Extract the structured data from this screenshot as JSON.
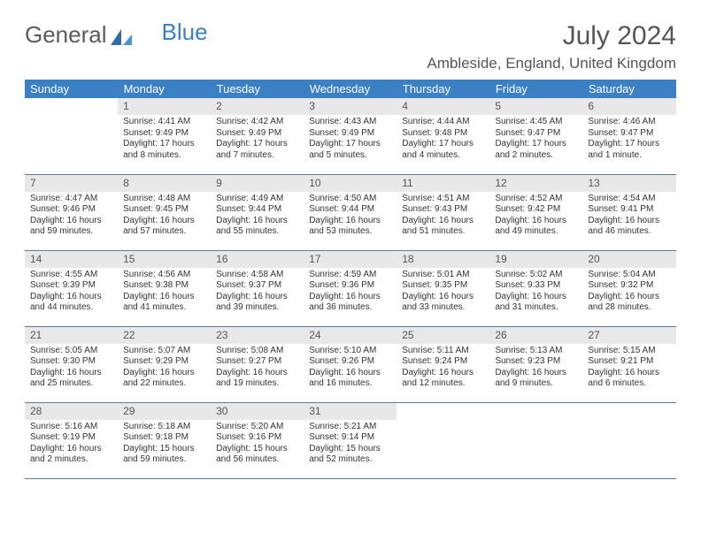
{
  "logo": {
    "part1": "General",
    "part2": "Blue"
  },
  "title": "July 2024",
  "location": "Ambleside, England, United Kingdom",
  "colors": {
    "header_bg": "#3b7fc4",
    "header_text": "#ffffff",
    "daynum_bg": "#e8e8e8",
    "border": "#5a7a9a",
    "text": "#333333",
    "title_text": "#555555"
  },
  "weekdays": [
    "Sunday",
    "Monday",
    "Tuesday",
    "Wednesday",
    "Thursday",
    "Friday",
    "Saturday"
  ],
  "weeks": [
    [
      null,
      {
        "n": "1",
        "sr": "Sunrise: 4:41 AM",
        "ss": "Sunset: 9:49 PM",
        "dl1": "Daylight: 17 hours",
        "dl2": "and 8 minutes."
      },
      {
        "n": "2",
        "sr": "Sunrise: 4:42 AM",
        "ss": "Sunset: 9:49 PM",
        "dl1": "Daylight: 17 hours",
        "dl2": "and 7 minutes."
      },
      {
        "n": "3",
        "sr": "Sunrise: 4:43 AM",
        "ss": "Sunset: 9:49 PM",
        "dl1": "Daylight: 17 hours",
        "dl2": "and 5 minutes."
      },
      {
        "n": "4",
        "sr": "Sunrise: 4:44 AM",
        "ss": "Sunset: 9:48 PM",
        "dl1": "Daylight: 17 hours",
        "dl2": "and 4 minutes."
      },
      {
        "n": "5",
        "sr": "Sunrise: 4:45 AM",
        "ss": "Sunset: 9:47 PM",
        "dl1": "Daylight: 17 hours",
        "dl2": "and 2 minutes."
      },
      {
        "n": "6",
        "sr": "Sunrise: 4:46 AM",
        "ss": "Sunset: 9:47 PM",
        "dl1": "Daylight: 17 hours",
        "dl2": "and 1 minute."
      }
    ],
    [
      {
        "n": "7",
        "sr": "Sunrise: 4:47 AM",
        "ss": "Sunset: 9:46 PM",
        "dl1": "Daylight: 16 hours",
        "dl2": "and 59 minutes."
      },
      {
        "n": "8",
        "sr": "Sunrise: 4:48 AM",
        "ss": "Sunset: 9:45 PM",
        "dl1": "Daylight: 16 hours",
        "dl2": "and 57 minutes."
      },
      {
        "n": "9",
        "sr": "Sunrise: 4:49 AM",
        "ss": "Sunset: 9:44 PM",
        "dl1": "Daylight: 16 hours",
        "dl2": "and 55 minutes."
      },
      {
        "n": "10",
        "sr": "Sunrise: 4:50 AM",
        "ss": "Sunset: 9:44 PM",
        "dl1": "Daylight: 16 hours",
        "dl2": "and 53 minutes."
      },
      {
        "n": "11",
        "sr": "Sunrise: 4:51 AM",
        "ss": "Sunset: 9:43 PM",
        "dl1": "Daylight: 16 hours",
        "dl2": "and 51 minutes."
      },
      {
        "n": "12",
        "sr": "Sunrise: 4:52 AM",
        "ss": "Sunset: 9:42 PM",
        "dl1": "Daylight: 16 hours",
        "dl2": "and 49 minutes."
      },
      {
        "n": "13",
        "sr": "Sunrise: 4:54 AM",
        "ss": "Sunset: 9:41 PM",
        "dl1": "Daylight: 16 hours",
        "dl2": "and 46 minutes."
      }
    ],
    [
      {
        "n": "14",
        "sr": "Sunrise: 4:55 AM",
        "ss": "Sunset: 9:39 PM",
        "dl1": "Daylight: 16 hours",
        "dl2": "and 44 minutes."
      },
      {
        "n": "15",
        "sr": "Sunrise: 4:56 AM",
        "ss": "Sunset: 9:38 PM",
        "dl1": "Daylight: 16 hours",
        "dl2": "and 41 minutes."
      },
      {
        "n": "16",
        "sr": "Sunrise: 4:58 AM",
        "ss": "Sunset: 9:37 PM",
        "dl1": "Daylight: 16 hours",
        "dl2": "and 39 minutes."
      },
      {
        "n": "17",
        "sr": "Sunrise: 4:59 AM",
        "ss": "Sunset: 9:36 PM",
        "dl1": "Daylight: 16 hours",
        "dl2": "and 36 minutes."
      },
      {
        "n": "18",
        "sr": "Sunrise: 5:01 AM",
        "ss": "Sunset: 9:35 PM",
        "dl1": "Daylight: 16 hours",
        "dl2": "and 33 minutes."
      },
      {
        "n": "19",
        "sr": "Sunrise: 5:02 AM",
        "ss": "Sunset: 9:33 PM",
        "dl1": "Daylight: 16 hours",
        "dl2": "and 31 minutes."
      },
      {
        "n": "20",
        "sr": "Sunrise: 5:04 AM",
        "ss": "Sunset: 9:32 PM",
        "dl1": "Daylight: 16 hours",
        "dl2": "and 28 minutes."
      }
    ],
    [
      {
        "n": "21",
        "sr": "Sunrise: 5:05 AM",
        "ss": "Sunset: 9:30 PM",
        "dl1": "Daylight: 16 hours",
        "dl2": "and 25 minutes."
      },
      {
        "n": "22",
        "sr": "Sunrise: 5:07 AM",
        "ss": "Sunset: 9:29 PM",
        "dl1": "Daylight: 16 hours",
        "dl2": "and 22 minutes."
      },
      {
        "n": "23",
        "sr": "Sunrise: 5:08 AM",
        "ss": "Sunset: 9:27 PM",
        "dl1": "Daylight: 16 hours",
        "dl2": "and 19 minutes."
      },
      {
        "n": "24",
        "sr": "Sunrise: 5:10 AM",
        "ss": "Sunset: 9:26 PM",
        "dl1": "Daylight: 16 hours",
        "dl2": "and 16 minutes."
      },
      {
        "n": "25",
        "sr": "Sunrise: 5:11 AM",
        "ss": "Sunset: 9:24 PM",
        "dl1": "Daylight: 16 hours",
        "dl2": "and 12 minutes."
      },
      {
        "n": "26",
        "sr": "Sunrise: 5:13 AM",
        "ss": "Sunset: 9:23 PM",
        "dl1": "Daylight: 16 hours",
        "dl2": "and 9 minutes."
      },
      {
        "n": "27",
        "sr": "Sunrise: 5:15 AM",
        "ss": "Sunset: 9:21 PM",
        "dl1": "Daylight: 16 hours",
        "dl2": "and 6 minutes."
      }
    ],
    [
      {
        "n": "28",
        "sr": "Sunrise: 5:16 AM",
        "ss": "Sunset: 9:19 PM",
        "dl1": "Daylight: 16 hours",
        "dl2": "and 2 minutes."
      },
      {
        "n": "29",
        "sr": "Sunrise: 5:18 AM",
        "ss": "Sunset: 9:18 PM",
        "dl1": "Daylight: 15 hours",
        "dl2": "and 59 minutes."
      },
      {
        "n": "30",
        "sr": "Sunrise: 5:20 AM",
        "ss": "Sunset: 9:16 PM",
        "dl1": "Daylight: 15 hours",
        "dl2": "and 56 minutes."
      },
      {
        "n": "31",
        "sr": "Sunrise: 5:21 AM",
        "ss": "Sunset: 9:14 PM",
        "dl1": "Daylight: 15 hours",
        "dl2": "and 52 minutes."
      },
      null,
      null,
      null
    ]
  ]
}
